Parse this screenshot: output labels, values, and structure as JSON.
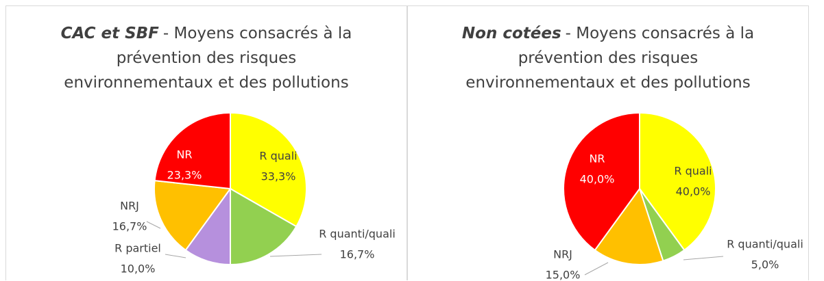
{
  "chart_data": [
    {
      "type": "pie",
      "title_emphasis": "CAC et SBF",
      "title": "- Moyens consacrés à la\nprévention des risques\nenvironnementaux et des pollutions",
      "categories": [
        "R quali",
        "R quanti/quali",
        "R partiel",
        "NRJ",
        "NR"
      ],
      "values": [
        33.3,
        16.7,
        10.0,
        16.7,
        23.3
      ],
      "value_labels": [
        "33,3%",
        "16,7%",
        "10,0%",
        "16,7%",
        "23,3%"
      ],
      "colors": [
        "#FFFF00",
        "#92D050",
        "#B690DD",
        "#FFC000",
        "#FF0000"
      ]
    },
    {
      "type": "pie",
      "title_emphasis": "Non cotées",
      "title": "- Moyens consacrés à la\nprévention des risques\nenvironnementaux et des pollutions",
      "categories": [
        "R quali",
        "R quanti/quali",
        "NRJ",
        "NR"
      ],
      "values": [
        40.0,
        5.0,
        15.0,
        40.0
      ],
      "value_labels": [
        "40,0%",
        "5,0%",
        "15,0%",
        "40,0%"
      ],
      "colors": [
        "#FFFF00",
        "#92D050",
        "#FFC000",
        "#FF0000"
      ]
    }
  ]
}
